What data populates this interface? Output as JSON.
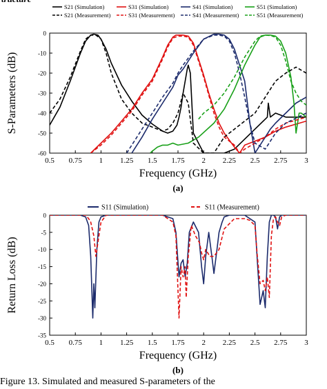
{
  "header_fragment": "tructure",
  "caption": "Figure 13. Simulated and measured S-parameters of the",
  "chart_data": [
    {
      "type": "line",
      "panel_label": "(a)",
      "xlabel": "Frequency (GHz)",
      "ylabel": "S-Parameters (dB)",
      "xlim": [
        0.5,
        3
      ],
      "ylim": [
        -60,
        0
      ],
      "xticks": [
        0.5,
        0.75,
        1,
        1.25,
        1.5,
        1.75,
        2,
        2.25,
        2.5,
        2.75,
        3
      ],
      "xtick_labels": [
        "0.5",
        "0.75",
        "1",
        "1.25",
        "1.5",
        "1.75",
        "2",
        "2.25",
        "2.5",
        "2.75",
        "3"
      ],
      "yticks": [
        0,
        -10,
        -20,
        -30,
        -40,
        -50,
        -60
      ],
      "ytick_labels": [
        "0",
        "-10",
        "-20",
        "-30",
        "-40",
        "-50",
        "-60"
      ],
      "grid": false,
      "legend": "top",
      "series": [
        {
          "name": "S21 (Simulation)",
          "color": "#000000",
          "dash": "solid",
          "x": [
            0.5,
            0.6,
            0.7,
            0.8,
            0.85,
            0.9,
            0.93,
            0.97,
            1.0,
            1.05,
            1.1,
            1.2,
            1.3,
            1.4,
            1.5,
            1.6,
            1.65,
            1.7,
            1.74,
            1.76,
            1.78,
            1.8,
            1.84,
            1.85,
            1.87,
            1.9,
            2.0,
            2.2,
            2.3,
            2.5,
            2.62,
            2.63,
            2.65,
            2.7,
            2.8,
            3.0
          ],
          "y": [
            -46,
            -37,
            -24,
            -10,
            -4,
            -1,
            -0.5,
            -1,
            -3,
            -8,
            -15,
            -26,
            -34,
            -41,
            -45.5,
            -49,
            -50,
            -49,
            -46,
            -42,
            -37,
            -30,
            -18,
            -16,
            -20,
            -50,
            -60,
            -60,
            -58,
            -48,
            -42,
            -35,
            -42,
            -40,
            -42,
            -42
          ]
        },
        {
          "name": "S31 (Simulation)",
          "color": "#e01010",
          "dash": "solid",
          "x": [
            0.9,
            1.0,
            1.1,
            1.2,
            1.3,
            1.4,
            1.5,
            1.6,
            1.65,
            1.7,
            1.73,
            1.8,
            1.85,
            1.9,
            1.95,
            2.0,
            2.05,
            2.1,
            2.15,
            2.2,
            2.3,
            2.35,
            2.4,
            2.5,
            2.6,
            2.7,
            2.8,
            3.0
          ],
          "y": [
            -60,
            -55,
            -50,
            -44,
            -38,
            -30,
            -23,
            -12,
            -6,
            -2,
            -1,
            -1,
            -1.5,
            -5,
            -13,
            -21,
            -30,
            -38,
            -45,
            -50,
            -57,
            -60,
            -56,
            -54,
            -52,
            -49,
            -47,
            -44
          ]
        },
        {
          "name": "S41 (Simulation)",
          "color": "#1b2a6b",
          "dash": "solid",
          "x": [
            1.3,
            1.4,
            1.5,
            1.6,
            1.7,
            1.75,
            1.8,
            1.9,
            2.0,
            2.1,
            2.15,
            2.2,
            2.25,
            2.3,
            2.4,
            2.45,
            2.5,
            2.55,
            2.6,
            2.65,
            2.7,
            2.8,
            2.9,
            3.0
          ],
          "y": [
            -60,
            -52,
            -43,
            -35,
            -27,
            -21,
            -18,
            -10,
            -3,
            -0.5,
            -0.5,
            -1,
            -3,
            -8,
            -24,
            -45,
            -60,
            -56,
            -52,
            -48,
            -45,
            -40,
            -35,
            -32
          ]
        },
        {
          "name": "S51 (Simulation)",
          "color": "#18a018",
          "dash": "solid",
          "x": [
            1.48,
            1.5,
            1.55,
            1.6,
            1.65,
            1.7,
            1.75,
            1.85,
            1.95,
            2.1,
            2.2,
            2.3,
            2.4,
            2.5,
            2.55,
            2.6,
            2.65,
            2.7,
            2.75,
            2.8,
            2.85,
            2.88,
            2.9,
            2.93,
            2.95,
            3.0
          ],
          "y": [
            -60,
            -59,
            -57,
            -56,
            -56,
            -55,
            -56,
            -55,
            -52,
            -45,
            -38,
            -28,
            -16,
            -6,
            -2,
            -1,
            -1,
            -1.5,
            -4,
            -10,
            -22,
            -35,
            -50,
            -40,
            -40,
            -42
          ]
        },
        {
          "name": "S21 (Measurement)",
          "color": "#000000",
          "dash": "dashed",
          "x": [
            0.5,
            0.6,
            0.7,
            0.8,
            0.85,
            0.9,
            0.95,
            1.0,
            1.05,
            1.1,
            1.2,
            1.3,
            1.4,
            1.5,
            1.6,
            1.65,
            1.7,
            1.75,
            1.8,
            1.85,
            1.9,
            2.0,
            2.1,
            2.2,
            2.3,
            2.4,
            2.5,
            2.6,
            2.7,
            2.8,
            2.9,
            3.0
          ],
          "y": [
            -40,
            -33,
            -22,
            -9,
            -3,
            -1,
            -1,
            -3,
            -10,
            -20,
            -33,
            -40,
            -45,
            -47,
            -49,
            -48,
            -45,
            -40,
            -30,
            -35,
            -55,
            -60,
            -60,
            -52,
            -48,
            -44,
            -40,
            -32,
            -24,
            -20,
            -17,
            -20
          ]
        },
        {
          "name": "S31 (Measurement)",
          "color": "#e01010",
          "dash": "dashed",
          "x": [
            0.9,
            1.0,
            1.1,
            1.2,
            1.3,
            1.4,
            1.5,
            1.6,
            1.65,
            1.7,
            1.75,
            1.8,
            1.85,
            1.9,
            1.95,
            2.0,
            2.05,
            2.1,
            2.15,
            2.2,
            2.3,
            2.35,
            2.4,
            2.5,
            2.6,
            2.7,
            2.8,
            3.0
          ],
          "y": [
            -60,
            -56,
            -51,
            -45,
            -39,
            -31,
            -24,
            -13,
            -7,
            -2.5,
            -1.5,
            -1.5,
            -2,
            -6,
            -14,
            -22,
            -31,
            -40,
            -47,
            -52,
            -56,
            -60,
            -58,
            -55,
            -52,
            -48,
            -45,
            -42
          ]
        },
        {
          "name": "S41 (Measurement)",
          "color": "#1b2a6b",
          "dash": "dashed",
          "x": [
            1.25,
            1.3,
            1.4,
            1.5,
            1.6,
            1.7,
            1.75,
            1.8,
            1.9,
            2.0,
            2.1,
            2.15,
            2.2,
            2.25,
            2.3,
            2.35,
            2.4,
            2.45,
            2.5,
            2.6,
            2.7,
            2.8,
            3.0
          ],
          "y": [
            -60,
            -56,
            -48,
            -40,
            -32,
            -25,
            -20,
            -16,
            -9,
            -3,
            -1,
            -1,
            -1.5,
            -4,
            -10,
            -20,
            -32,
            -45,
            -55,
            -58,
            -50,
            -45,
            -40
          ]
        },
        {
          "name": "S51 (Measurement)",
          "color": "#18a018",
          "dash": "dashed",
          "x": [
            1.95,
            2.0,
            2.1,
            2.2,
            2.3,
            2.4,
            2.5,
            2.55,
            2.6,
            2.65,
            2.7,
            2.75,
            2.8,
            2.85,
            2.9,
            2.95,
            3.0
          ],
          "y": [
            -43,
            -40,
            -36,
            -30,
            -22,
            -12,
            -4,
            -1.5,
            -1,
            -1.2,
            -2,
            -6,
            -14,
            -24,
            -30,
            -34,
            -36
          ]
        }
      ]
    },
    {
      "type": "line",
      "panel_label": "(b)",
      "xlabel": "Frequency (GHz)",
      "ylabel": "Return Loss (dB)",
      "xlim": [
        0.5,
        3
      ],
      "ylim": [
        -35,
        0
      ],
      "xticks": [
        0.5,
        0.75,
        1,
        1.25,
        1.5,
        1.75,
        2,
        2.25,
        2.5,
        2.75,
        3
      ],
      "xtick_labels": [
        "0.5",
        "0.75",
        "1",
        "1.25",
        "1.5",
        "1.75",
        "2",
        "2.25",
        "2.5",
        "2.75",
        "3"
      ],
      "yticks": [
        0,
        -5,
        -10,
        -15,
        -20,
        -25,
        -30,
        -35
      ],
      "ytick_labels": [
        "0",
        "-5",
        "-10",
        "-15",
        "-20",
        "-25",
        "-30",
        "-35"
      ],
      "grid": false,
      "legend": "top",
      "series": [
        {
          "name": "S11 (Simulation)",
          "color": "#1b2a6b",
          "dash": "solid",
          "x": [
            0.5,
            0.8,
            0.85,
            0.88,
            0.9,
            0.92,
            0.93,
            0.94,
            0.96,
            0.98,
            1.0,
            1.05,
            1.6,
            1.7,
            1.73,
            1.76,
            1.78,
            1.8,
            1.82,
            1.84,
            1.86,
            1.9,
            1.95,
            1.98,
            2.0,
            2.02,
            2.05,
            2.08,
            2.1,
            2.13,
            2.15,
            2.18,
            2.2,
            2.25,
            2.4,
            2.5,
            2.52,
            2.55,
            2.58,
            2.6,
            2.62,
            2.64,
            2.66,
            2.68,
            2.7,
            2.72,
            2.74,
            2.76,
            2.78,
            2.8,
            3.0
          ],
          "y": [
            0,
            0,
            -0.5,
            -3,
            -12,
            -30,
            -20,
            -27,
            -10,
            -2,
            -0.5,
            0,
            0,
            -1,
            -5,
            -18,
            -14,
            -13,
            -18,
            -14,
            -5,
            -2,
            -5,
            -15,
            -20,
            -12,
            -5,
            -12,
            -17,
            -10,
            -5,
            -2,
            -0.5,
            0,
            0,
            -2,
            -12,
            -26,
            -22,
            -27,
            -12,
            -2,
            0,
            0,
            -0.5,
            -4,
            -0.5,
            0,
            0,
            0,
            0
          ]
        },
        {
          "name": "S11 (Measurement)",
          "color": "#e01010",
          "dash": "dashed",
          "x": [
            0.5,
            0.85,
            0.88,
            0.9,
            0.93,
            0.95,
            0.97,
            1.0,
            1.05,
            1.6,
            1.7,
            1.73,
            1.76,
            1.78,
            1.8,
            1.82,
            1.83,
            1.85,
            1.88,
            1.92,
            1.96,
            1.98,
            2.0,
            2.02,
            2.06,
            2.1,
            2.15,
            2.2,
            2.3,
            2.4,
            2.45,
            2.5,
            2.52,
            2.55,
            2.58,
            2.6,
            2.62,
            2.64,
            2.66,
            2.68,
            2.7,
            2.72,
            2.74,
            2.76,
            2.8,
            3.0
          ],
          "y": [
            0,
            0,
            -1,
            -2,
            -6,
            -12,
            -8,
            -2,
            0,
            0,
            -2,
            -6,
            -30,
            -15,
            -18,
            -15,
            -24,
            -12,
            -3,
            -6,
            -8,
            -11,
            -13,
            -10,
            -12,
            -12,
            -10,
            -4,
            -1,
            -1,
            -1.5,
            -3,
            -11,
            -20,
            -19,
            -22,
            -18,
            -24,
            -6,
            -1,
            -0.5,
            -2,
            -3,
            -0.5,
            0,
            0
          ]
        }
      ]
    }
  ]
}
